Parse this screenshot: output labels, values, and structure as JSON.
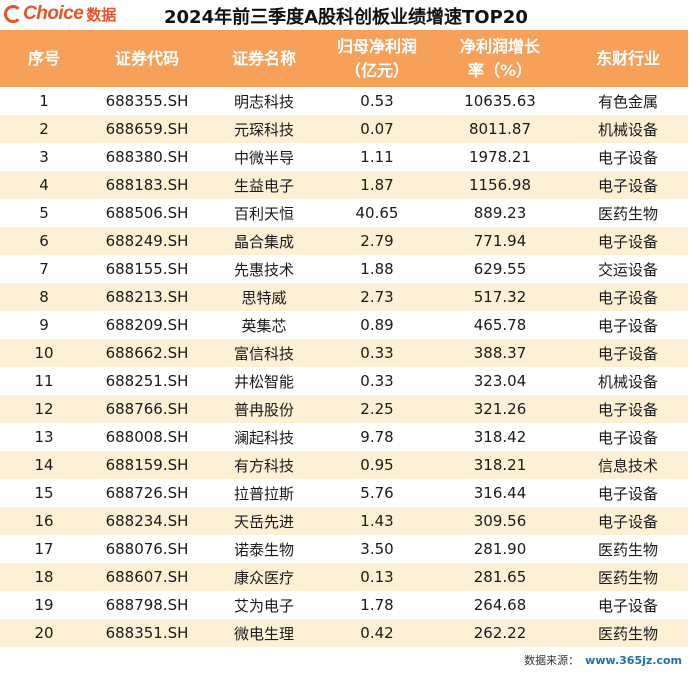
{
  "brand": {
    "logo_text": "Choice",
    "logo_cn": "数据",
    "accent": "#e8532a"
  },
  "title": "2024年前三季度A股科创板业绩增速TOP20",
  "header_color": "#f6a05a",
  "stripe_color": "#fdf0d5",
  "table": {
    "columns": [
      {
        "line1": "序号",
        "line2": ""
      },
      {
        "line1": "证券代码",
        "line2": ""
      },
      {
        "line1": "证券名称",
        "line2": ""
      },
      {
        "line1": "归母净利润",
        "line2": "（亿元）"
      },
      {
        "line1": "净利润增长",
        "line2": "率（%）"
      },
      {
        "line1": "东财行业",
        "line2": ""
      }
    ],
    "rows": [
      [
        "1",
        "688355.SH",
        "明志科技",
        "0.53",
        "10635.63",
        "有色金属"
      ],
      [
        "2",
        "688659.SH",
        "元琛科技",
        "0.07",
        "8011.87",
        "机械设备"
      ],
      [
        "3",
        "688380.SH",
        "中微半导",
        "1.11",
        "1978.21",
        "电子设备"
      ],
      [
        "4",
        "688183.SH",
        "生益电子",
        "1.87",
        "1156.98",
        "电子设备"
      ],
      [
        "5",
        "688506.SH",
        "百利天恒",
        "40.65",
        "889.23",
        "医药生物"
      ],
      [
        "6",
        "688249.SH",
        "晶合集成",
        "2.79",
        "771.94",
        "电子设备"
      ],
      [
        "7",
        "688155.SH",
        "先惠技术",
        "1.88",
        "629.55",
        "交运设备"
      ],
      [
        "8",
        "688213.SH",
        "思特威",
        "2.73",
        "517.32",
        "电子设备"
      ],
      [
        "9",
        "688209.SH",
        "英集芯",
        "0.89",
        "465.78",
        "电子设备"
      ],
      [
        "10",
        "688662.SH",
        "富信科技",
        "0.33",
        "388.37",
        "电子设备"
      ],
      [
        "11",
        "688251.SH",
        "井松智能",
        "0.33",
        "323.04",
        "机械设备"
      ],
      [
        "12",
        "688766.SH",
        "普冉股份",
        "2.25",
        "321.26",
        "电子设备"
      ],
      [
        "13",
        "688008.SH",
        "澜起科技",
        "9.78",
        "318.42",
        "电子设备"
      ],
      [
        "14",
        "688159.SH",
        "有方科技",
        "0.95",
        "318.21",
        "信息技术"
      ],
      [
        "15",
        "688726.SH",
        "拉普拉斯",
        "5.76",
        "316.44",
        "电子设备"
      ],
      [
        "16",
        "688234.SH",
        "天岳先进",
        "1.43",
        "309.56",
        "电子设备"
      ],
      [
        "17",
        "688076.SH",
        "诺泰生物",
        "3.50",
        "281.90",
        "医药生物"
      ],
      [
        "18",
        "688607.SH",
        "康众医疗",
        "0.13",
        "281.65",
        "医药生物"
      ],
      [
        "19",
        "688798.SH",
        "艾为电子",
        "1.78",
        "264.68",
        "电子设备"
      ],
      [
        "20",
        "688351.SH",
        "微电生理",
        "0.42",
        "262.22",
        "医药生物"
      ]
    ]
  },
  "footer": {
    "source_label": "数据来源：",
    "site": "www.365jz.com"
  }
}
